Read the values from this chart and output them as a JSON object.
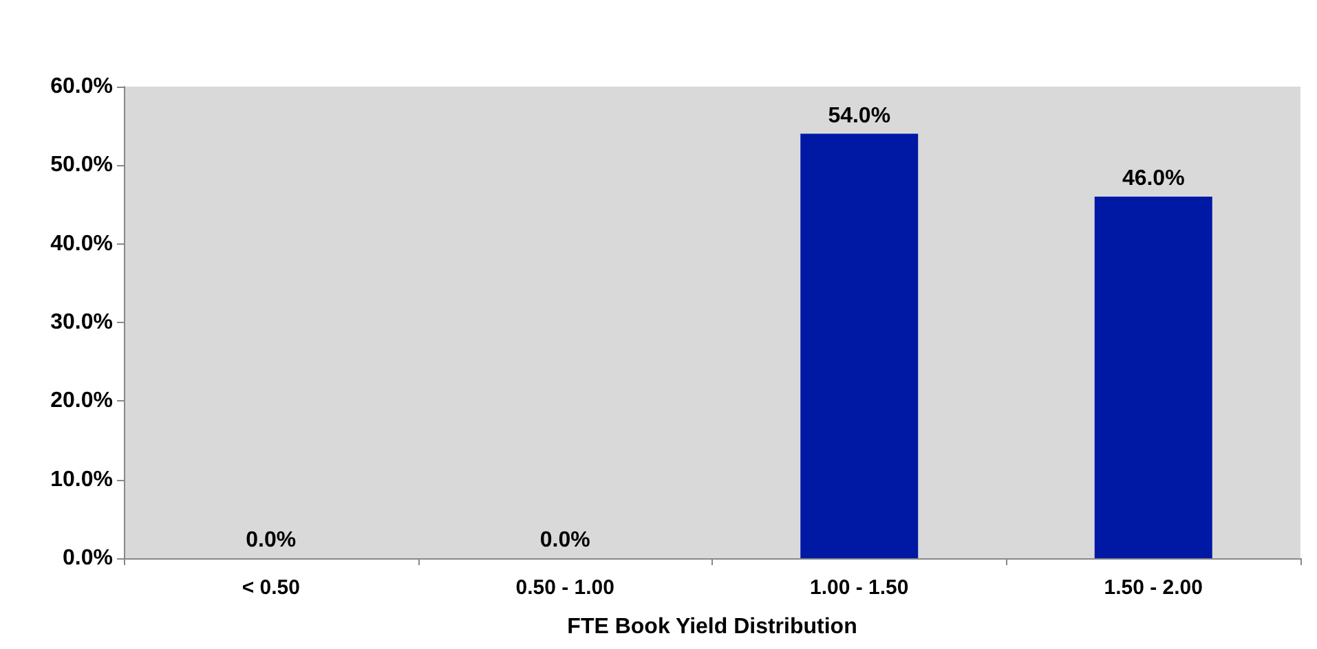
{
  "chart_data": {
    "type": "bar",
    "xlabel": "FTE Book Yield Distribution",
    "categories": [
      "< 0.50",
      "0.50 - 1.00",
      "1.00 - 1.50",
      "1.50 - 2.00"
    ],
    "values": [
      0.0,
      0.0,
      54.0,
      46.0
    ],
    "color": "#0019a5",
    "value_labels": [
      "0.0%",
      "0.0%",
      "54.0%",
      "46.0%"
    ],
    "ylim": [
      0,
      60
    ],
    "yticks": [
      {
        "value": 0,
        "label": "0.0%"
      },
      {
        "value": 10,
        "label": "10.0%"
      },
      {
        "value": 20,
        "label": "20.0%"
      },
      {
        "value": 30,
        "label": "30.0%"
      },
      {
        "value": 40,
        "label": "40.0%"
      },
      {
        "value": 50,
        "label": "50.0%"
      },
      {
        "value": 60,
        "label": "60.0%"
      }
    ],
    "grid": false
  }
}
